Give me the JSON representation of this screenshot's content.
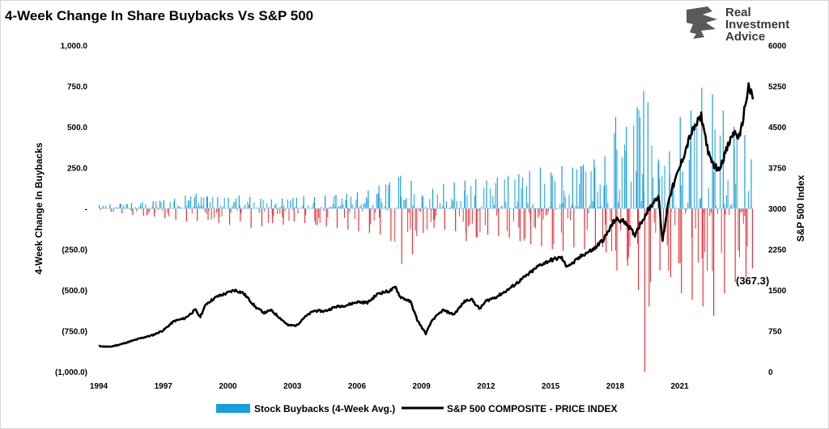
{
  "chart_data": {
    "type": "bar",
    "title": "4-Week Change In Share Buybacks Vs S&P 500",
    "ylabel": "4-Week Change In Buybacks",
    "ylabel_right": "S&P 500 Index",
    "ylim": [
      -1000,
      1000
    ],
    "ylim_right": [
      0,
      6000
    ],
    "y_ticks": [
      {
        "value": 1000,
        "label": "1,000.0"
      },
      {
        "value": 750,
        "label": "750.0"
      },
      {
        "value": 500,
        "label": "500.0"
      },
      {
        "value": 250,
        "label": "250.0"
      },
      {
        "value": 0,
        "label": "-"
      },
      {
        "value": -250,
        "label": "(250.0)"
      },
      {
        "value": -500,
        "label": "(500.0)"
      },
      {
        "value": -750,
        "label": "(750.0)"
      },
      {
        "value": -1000,
        "label": "(1,000.0)"
      }
    ],
    "y_ticks_right": [
      {
        "value": 6000,
        "label": "6000"
      },
      {
        "value": 5250,
        "label": "5250"
      },
      {
        "value": 4500,
        "label": "4500"
      },
      {
        "value": 3750,
        "label": "3750"
      },
      {
        "value": 3000,
        "label": "3000"
      },
      {
        "value": 2250,
        "label": "2250"
      },
      {
        "value": 1500,
        "label": "1500"
      },
      {
        "value": 750,
        "label": "750"
      },
      {
        "value": 0,
        "label": "0"
      }
    ],
    "x_range": [
      1994,
      2024.4
    ],
    "x_ticks": [
      "1994",
      "1997",
      "2000",
      "2003",
      "2006",
      "2009",
      "2012",
      "2015",
      "2018",
      "2021"
    ],
    "legend_position": "bottom",
    "annotation": "(367.3)",
    "colors": {
      "positive": "#1a9fd8",
      "negative": "#e8333c",
      "line": "#000000"
    },
    "series": [
      {
        "name": "Stock Buybacks (4-Week Avg.)",
        "type": "bar",
        "x": [
          1994.0,
          1994.5,
          1995.0,
          1995.5,
          1996.0,
          1996.5,
          1997.0,
          1997.5,
          1998.0,
          1998.5,
          1999.0,
          1999.5,
          2000.0,
          2000.5,
          2001.0,
          2001.5,
          2002.0,
          2002.5,
          2003.0,
          2003.5,
          2004.0,
          2004.5,
          2005.0,
          2005.5,
          2006.0,
          2006.5,
          2007.0,
          2007.5,
          2008.0,
          2008.5,
          2009.0,
          2009.5,
          2010.0,
          2010.5,
          2011.0,
          2011.5,
          2012.0,
          2012.5,
          2013.0,
          2013.5,
          2014.0,
          2014.5,
          2015.0,
          2015.5,
          2016.0,
          2016.5,
          2017.0,
          2017.5,
          2018.0,
          2018.5,
          2019.0,
          2019.3,
          2019.5,
          2020.0,
          2020.5,
          2021.0,
          2021.5,
          2022.0,
          2022.5,
          2023.0,
          2023.5,
          2024.0,
          2024.3
        ],
        "values_pos": [
          20,
          25,
          30,
          35,
          40,
          45,
          50,
          60,
          80,
          90,
          75,
          70,
          65,
          80,
          70,
          60,
          55,
          60,
          65,
          75,
          70,
          80,
          85,
          90,
          100,
          110,
          140,
          160,
          200,
          170,
          80,
          120,
          150,
          160,
          170,
          180,
          170,
          190,
          200,
          210,
          230,
          250,
          220,
          260,
          250,
          270,
          300,
          320,
          560,
          500,
          620,
          720,
          650,
          300,
          350,
          560,
          600,
          740,
          700,
          600,
          500,
          450,
          300
        ],
        "values_neg": [
          -10,
          -20,
          -30,
          -40,
          -45,
          -50,
          -60,
          -70,
          -80,
          -75,
          -70,
          -90,
          -100,
          -80,
          -120,
          -110,
          -90,
          -100,
          -80,
          -90,
          -100,
          -110,
          -120,
          -130,
          -140,
          -150,
          -160,
          -200,
          -340,
          -280,
          -150,
          -120,
          -130,
          -140,
          -200,
          -180,
          -160,
          -170,
          -180,
          -200,
          -220,
          -230,
          -250,
          -260,
          -240,
          -250,
          -260,
          -270,
          -380,
          -350,
          -500,
          -1000,
          -600,
          -380,
          -420,
          -520,
          -560,
          -600,
          -660,
          -520,
          -450,
          -420,
          -367.3
        ]
      },
      {
        "name": "S&P 500 COMPOSITE - PRICE INDEX",
        "type": "line",
        "x": [
          1994.0,
          1994.5,
          1995.0,
          1995.5,
          1996.0,
          1996.5,
          1997.0,
          1997.5,
          1998.0,
          1998.5,
          1998.7,
          1999.0,
          1999.5,
          2000.0,
          2000.3,
          2000.7,
          2001.0,
          2001.3,
          2001.7,
          2002.0,
          2002.5,
          2002.8,
          2003.2,
          2003.5,
          2004.0,
          2004.5,
          2005.0,
          2005.5,
          2006.0,
          2006.5,
          2007.0,
          2007.5,
          2007.8,
          2008.0,
          2008.5,
          2008.8,
          2009.0,
          2009.2,
          2009.5,
          2010.0,
          2010.5,
          2011.0,
          2011.3,
          2011.7,
          2012.0,
          2012.5,
          2013.0,
          2013.5,
          2014.0,
          2014.5,
          2015.0,
          2015.5,
          2015.7,
          2016.0,
          2016.5,
          2017.0,
          2017.5,
          2018.0,
          2018.5,
          2018.9,
          2019.0,
          2019.5,
          2020.0,
          2020.2,
          2020.5,
          2021.0,
          2021.5,
          2022.0,
          2022.4,
          2022.8,
          2023.0,
          2023.5,
          2023.8,
          2024.0,
          2024.2,
          2024.4
        ],
        "values": [
          470,
          455,
          500,
          560,
          620,
          670,
          760,
          930,
          980,
          1140,
          1000,
          1250,
          1380,
          1450,
          1500,
          1450,
          1320,
          1180,
          1080,
          1130,
          960,
          850,
          850,
          980,
          1120,
          1110,
          1190,
          1220,
          1280,
          1270,
          1440,
          1480,
          1550,
          1380,
          1280,
          950,
          820,
          700,
          950,
          1130,
          1050,
          1290,
          1340,
          1150,
          1300,
          1380,
          1500,
          1650,
          1800,
          1960,
          2050,
          2100,
          1950,
          1980,
          2150,
          2250,
          2450,
          2800,
          2750,
          2500,
          2600,
          2950,
          3250,
          2400,
          3200,
          3750,
          4350,
          4700,
          3900,
          3700,
          3900,
          4400,
          4300,
          4800,
          5250,
          5000
        ]
      }
    ]
  },
  "legend": {
    "bars_label": "Stock Buybacks (4-Week Avg.)",
    "line_label": "S&P 500 COMPOSITE - PRICE INDEX"
  },
  "logo": {
    "line1": "Real",
    "line2": "Investment",
    "line3": "Advice"
  }
}
